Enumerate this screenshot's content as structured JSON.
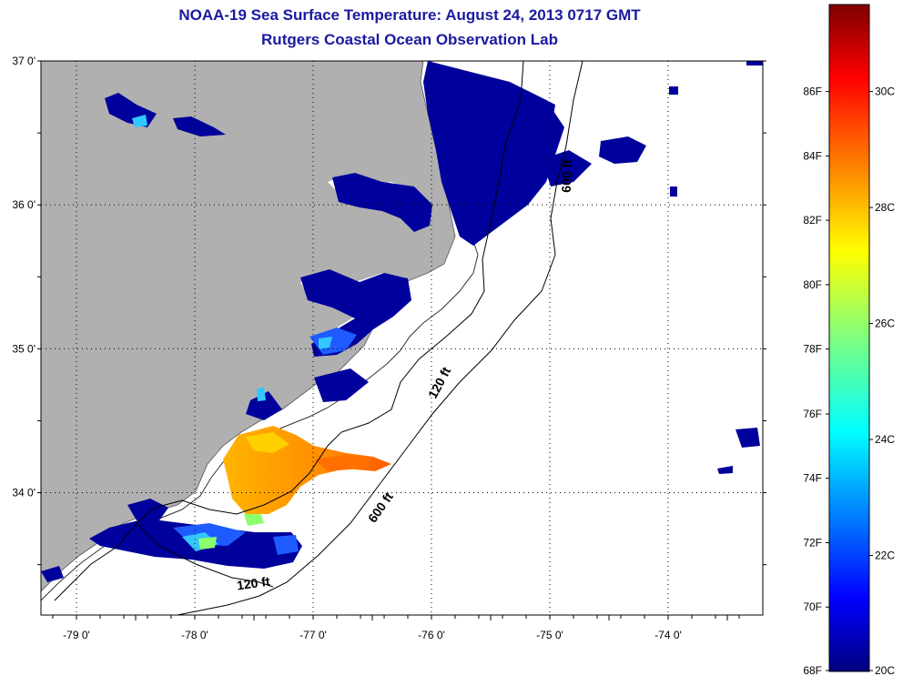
{
  "title": "NOAA-19 Sea Surface Temperature:  August 24, 2013 0717 GMT",
  "subtitle": "Rutgers Coastal Ocean Observation Lab",
  "map": {
    "lon_range": [
      -79.3,
      -73.2
    ],
    "lat_range": [
      33.15,
      37.0
    ],
    "lat_labels": [
      {
        "lat": 37.0,
        "text": "37 0'"
      },
      {
        "lat": 36.0,
        "text": "36 0'"
      },
      {
        "lat": 35.0,
        "text": "35 0'"
      },
      {
        "lat": 34.0,
        "text": "34 0'"
      }
    ],
    "lon_labels": [
      {
        "lon": -79.0,
        "text": "-79 0'"
      },
      {
        "lon": -78.0,
        "text": "-78 0'"
      },
      {
        "lon": -77.0,
        "text": "-77 0'"
      },
      {
        "lon": -76.0,
        "text": "-76 0'"
      },
      {
        "lon": -75.0,
        "text": "-75 0'"
      },
      {
        "lon": -74.0,
        "text": "-74 0'"
      }
    ],
    "contour_labels": [
      {
        "text": "600 ft",
        "lon": -74.82,
        "lat": 36.2,
        "rotate": -88
      },
      {
        "text": "120 ft",
        "lon": -75.9,
        "lat": 34.75,
        "rotate": -62
      },
      {
        "text": "600 ft",
        "lon": -76.4,
        "lat": 33.88,
        "rotate": -55
      },
      {
        "text": "120 ft",
        "lon": -77.5,
        "lat": 33.34,
        "rotate": -8
      }
    ],
    "land_color": "#b0b0b0",
    "grid": true
  },
  "colorbar": {
    "min_c": 20,
    "max_c": 31.5,
    "f_labels": [
      {
        "c": 30.0,
        "text": "86F"
      },
      {
        "c": 28.89,
        "text": "84F"
      },
      {
        "c": 27.78,
        "text": "82F"
      },
      {
        "c": 26.67,
        "text": "80F"
      },
      {
        "c": 25.56,
        "text": "78F"
      },
      {
        "c": 24.44,
        "text": "76F"
      },
      {
        "c": 23.33,
        "text": "74F"
      },
      {
        "c": 22.22,
        "text": "72F"
      },
      {
        "c": 21.11,
        "text": "70F"
      },
      {
        "c": 20.0,
        "text": "68F"
      }
    ],
    "c_labels": [
      {
        "c": 30,
        "text": "30C"
      },
      {
        "c": 28,
        "text": "28C"
      },
      {
        "c": 26,
        "text": "26C"
      },
      {
        "c": 24,
        "text": "24C"
      },
      {
        "c": 22,
        "text": "22C"
      },
      {
        "c": 20,
        "text": "20C"
      }
    ]
  }
}
